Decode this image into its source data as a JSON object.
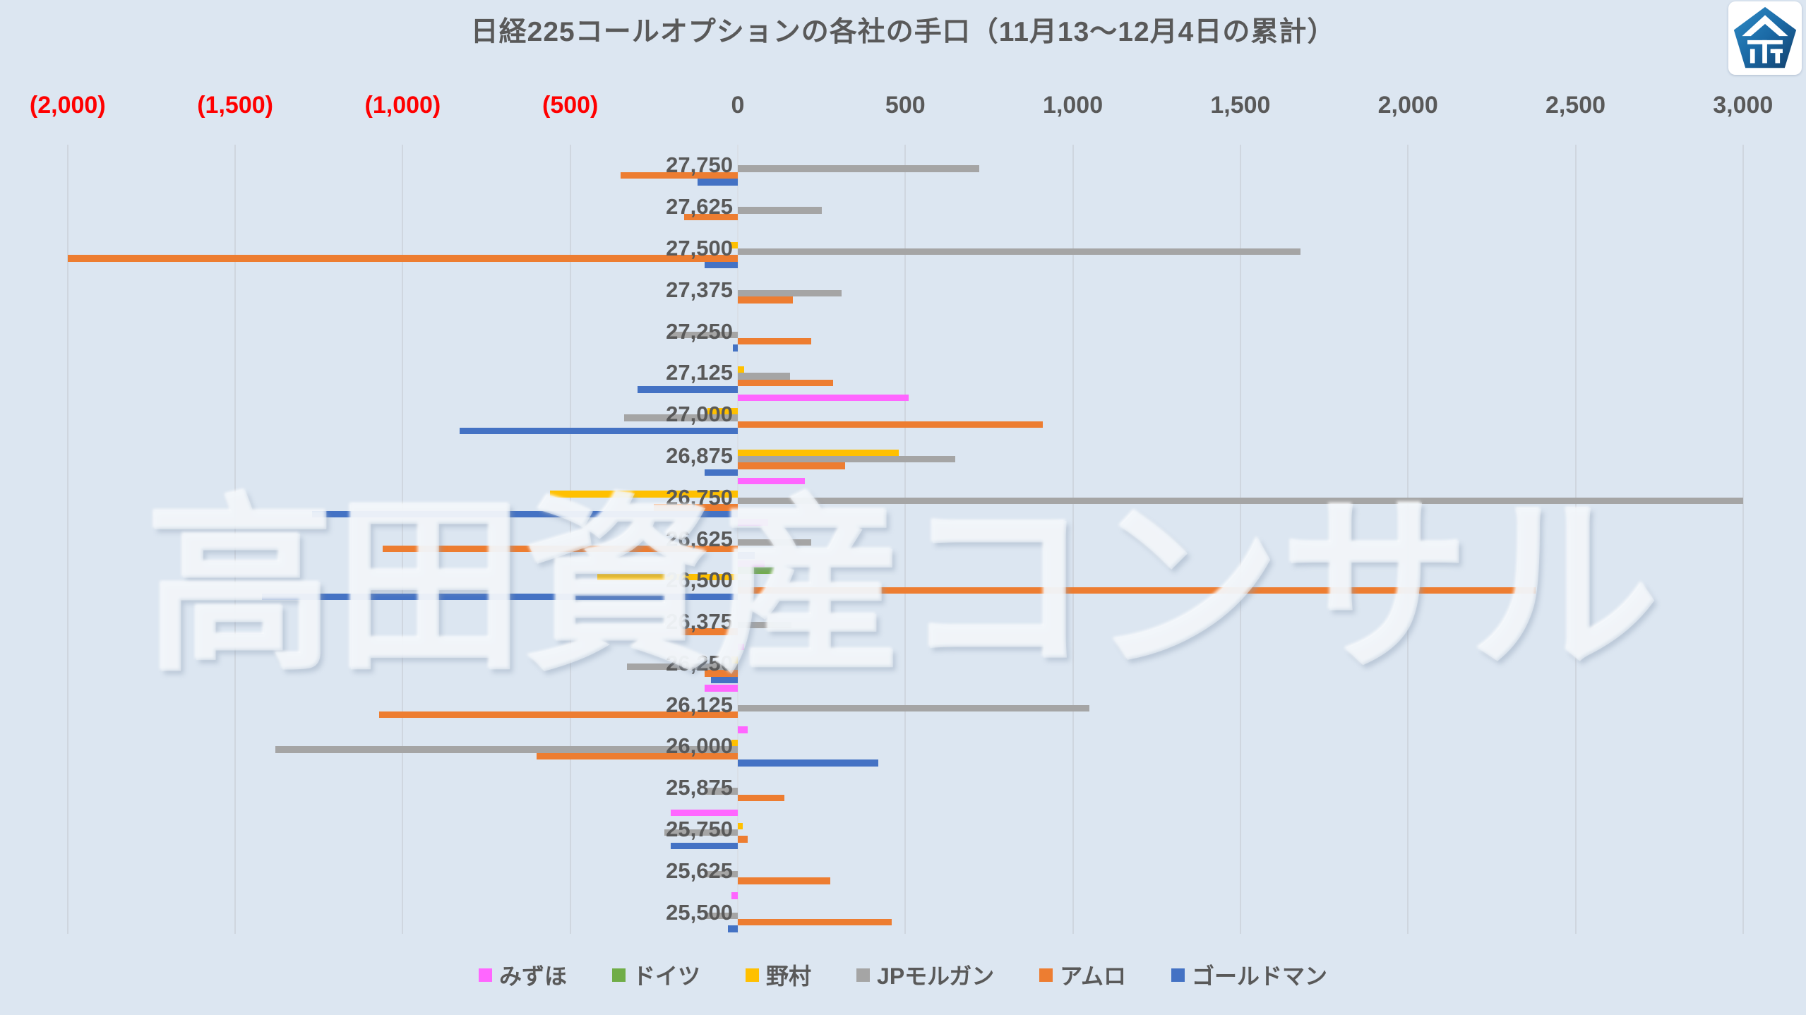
{
  "page": {
    "background_color": "#dce6f1",
    "watermark_text": "高田資産コンサル",
    "logo": "pentagon-kanji-logo"
  },
  "chart_data": {
    "type": "bar",
    "orientation": "horizontal-clustered",
    "title": "日経225コールオプションの各社の手口（11月13～12月4日の累計）",
    "title_color": "#595959",
    "xlabel": "",
    "ylabel": "",
    "x_axis": {
      "min": -2000,
      "max": 3000,
      "tick_step": 500,
      "tick_values": [
        -2000,
        -1500,
        -1000,
        -500,
        0,
        500,
        1000,
        1500,
        2000,
        2500,
        3000
      ],
      "tick_labels": [
        "(2,000)",
        "(1,500)",
        "(1,000)",
        "(500)",
        "0",
        "500",
        "1,000",
        "1,500",
        "2,000",
        "2,500",
        "3,000"
      ],
      "negative_label_color": "#ff0000",
      "positive_label_color": "#595959",
      "grid": true
    },
    "categories": [
      "27,750",
      "27,625",
      "27,500",
      "27,375",
      "27,250",
      "27,125",
      "27,000",
      "26,875",
      "26,750",
      "26,625",
      "26,500",
      "26,375",
      "26,250",
      "26,125",
      "26,000",
      "25,875",
      "25,750",
      "25,625",
      "25,500"
    ],
    "series": [
      {
        "name": "みずほ",
        "color": "#ff66ff",
        "values": [
          0,
          0,
          0,
          0,
          0,
          0,
          510,
          0,
          200,
          90,
          80,
          0,
          20,
          -100,
          30,
          0,
          -200,
          0,
          -20
        ]
      },
      {
        "name": "ドイツ",
        "color": "#70ad47",
        "values": [
          0,
          0,
          0,
          0,
          0,
          0,
          0,
          0,
          0,
          0,
          110,
          0,
          0,
          0,
          0,
          0,
          0,
          0,
          0
        ]
      },
      {
        "name": "野村",
        "color": "#ffc000",
        "values": [
          0,
          0,
          -25,
          0,
          0,
          20,
          -90,
          480,
          -560,
          0,
          -420,
          0,
          -20,
          0,
          -20,
          0,
          15,
          0,
          0
        ]
      },
      {
        "name": "JPモルガン",
        "color": "#a5a5a5",
        "values": [
          720,
          250,
          1680,
          310,
          -200,
          155,
          -340,
          650,
          3000,
          220,
          35,
          160,
          -330,
          1050,
          -1380,
          -100,
          -220,
          -100,
          -100
        ]
      },
      {
        "name": "アムロ",
        "color": "#ed7d31",
        "values": [
          -350,
          -160,
          -2000,
          165,
          220,
          285,
          910,
          320,
          -250,
          -1060,
          2380,
          -170,
          -100,
          -1070,
          -600,
          140,
          30,
          275,
          460
        ]
      },
      {
        "name": "ゴールドマン",
        "color": "#4472c4",
        "values": [
          -120,
          0,
          -100,
          0,
          -15,
          -300,
          -830,
          -100,
          -1270,
          50,
          -1420,
          0,
          -80,
          0,
          420,
          0,
          -200,
          0,
          -30
        ]
      }
    ],
    "legend_position": "bottom"
  }
}
